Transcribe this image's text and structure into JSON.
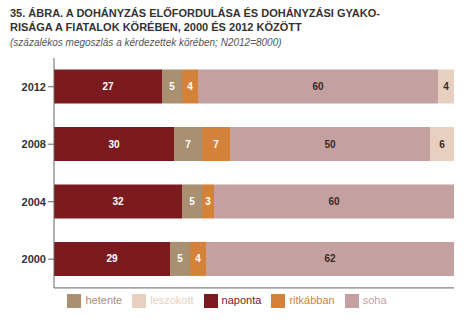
{
  "chart_data": {
    "type": "bar",
    "orientation": "horizontal",
    "stacked": true,
    "data_labels": true,
    "tick_labels": "y",
    "grid": false,
    "title": [
      "35. ÁBRA. A DOHÁNYZÁS ELŐFORDULÁSA ÉS DOHÁNYZÁSI GYAKO-",
      "RISÁGA A FIATALOK KÖRÉBEN, 2000 ÉS 2012 KÖZÖTT"
    ],
    "subtitle": "(százalékos megoszlás a kérdezettek körében; N2012=8000)",
    "categories": [
      "2012",
      "2008",
      "2004",
      "2000"
    ],
    "xlim": [
      0,
      100
    ],
    "legend": "bottom",
    "series": [
      {
        "name": "naponta",
        "color": "#7B1A1F",
        "values": [
          27,
          30,
          32,
          29
        ]
      },
      {
        "name": "hetente",
        "color": "#A89070",
        "values": [
          5,
          7,
          5,
          5
        ]
      },
      {
        "name": "ritkábban",
        "color": "#D4823A",
        "values": [
          4,
          7,
          3,
          4
        ]
      },
      {
        "name": "soha",
        "color": "#C4A0A0",
        "values": [
          60,
          50,
          60,
          62
        ]
      },
      {
        "name": "leszokott",
        "color": "#E8D0C0",
        "values": [
          4,
          6,
          0,
          0
        ]
      }
    ]
  }
}
